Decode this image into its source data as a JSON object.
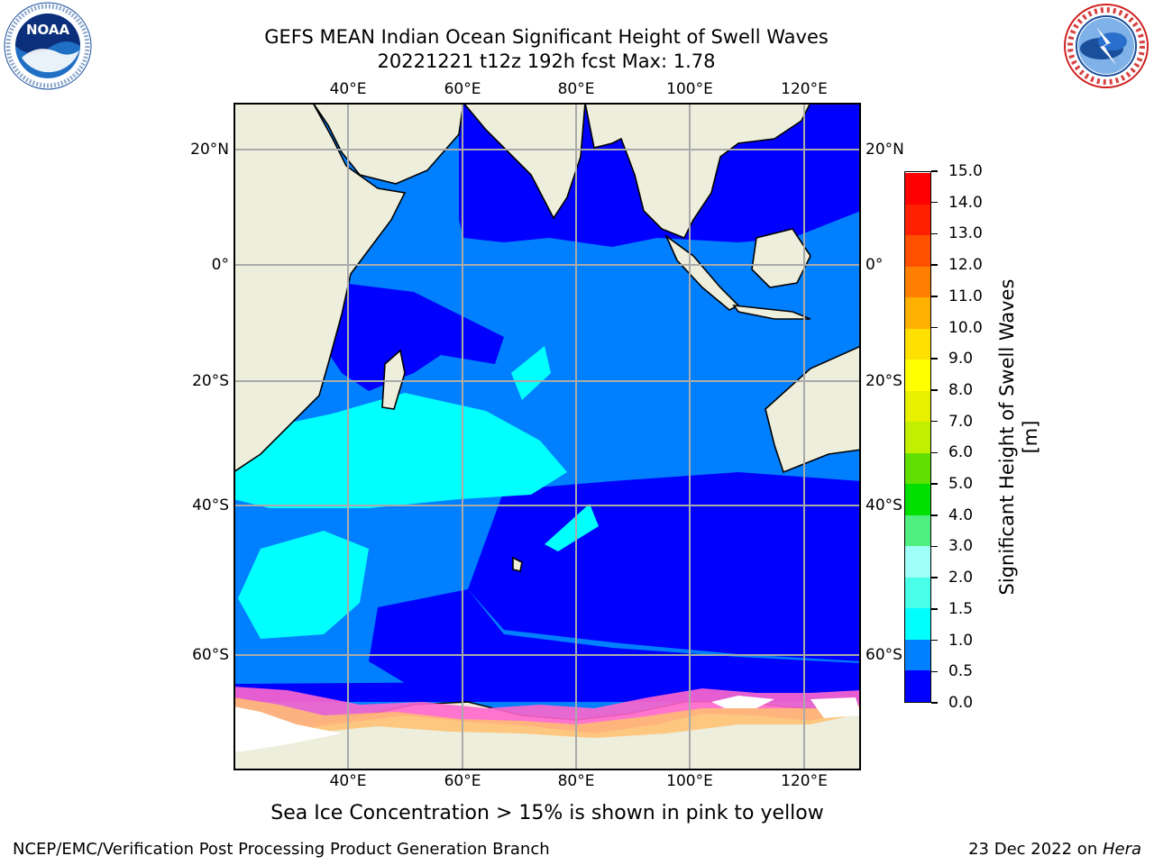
{
  "title": {
    "line1": "GEFS MEAN Indian Ocean Significant Height of Swell Waves",
    "line2": "20221221 t12z 192h fcst   Max: 1.78"
  },
  "map": {
    "lon_labels": [
      "40°E",
      "60°E",
      "80°E",
      "100°E",
      "120°E"
    ],
    "lat_labels": [
      "20°N",
      "0°",
      "20°S",
      "40°S",
      "60°S"
    ],
    "lon_range": [
      20,
      130
    ],
    "lat_range": [
      -72,
      28
    ]
  },
  "colorbar": {
    "label": "Significant Height of Swell Waves [m]",
    "ticks": [
      "0.0",
      "0.5",
      "1.0",
      "1.5",
      "2.0",
      "3.0",
      "4.0",
      "5.0",
      "6.0",
      "7.0",
      "8.0",
      "9.0",
      "10.0",
      "11.0",
      "12.0",
      "13.0",
      "14.0",
      "15.0"
    ],
    "colors": [
      "#0000ff",
      "#0080ff",
      "#00ffff",
      "#48ffe8",
      "#a0fff8",
      "#50f080",
      "#00e000",
      "#60e000",
      "#c0f000",
      "#e8f000",
      "#ffff00",
      "#ffe000",
      "#ffb000",
      "#ff8000",
      "#ff5000",
      "#ff2000",
      "#ff0000"
    ]
  },
  "caption": "Sea Ice Concentration > 15% is shown in pink to yellow",
  "footer": {
    "left": "NCEP/EMC/Verification Post Processing Product Generation Branch",
    "right_date": "23 Dec 2022 on ",
    "right_host": "Hera"
  },
  "logos": {
    "left": "NOAA",
    "right_text": "NATIONAL WEATHER SERVICE"
  }
}
